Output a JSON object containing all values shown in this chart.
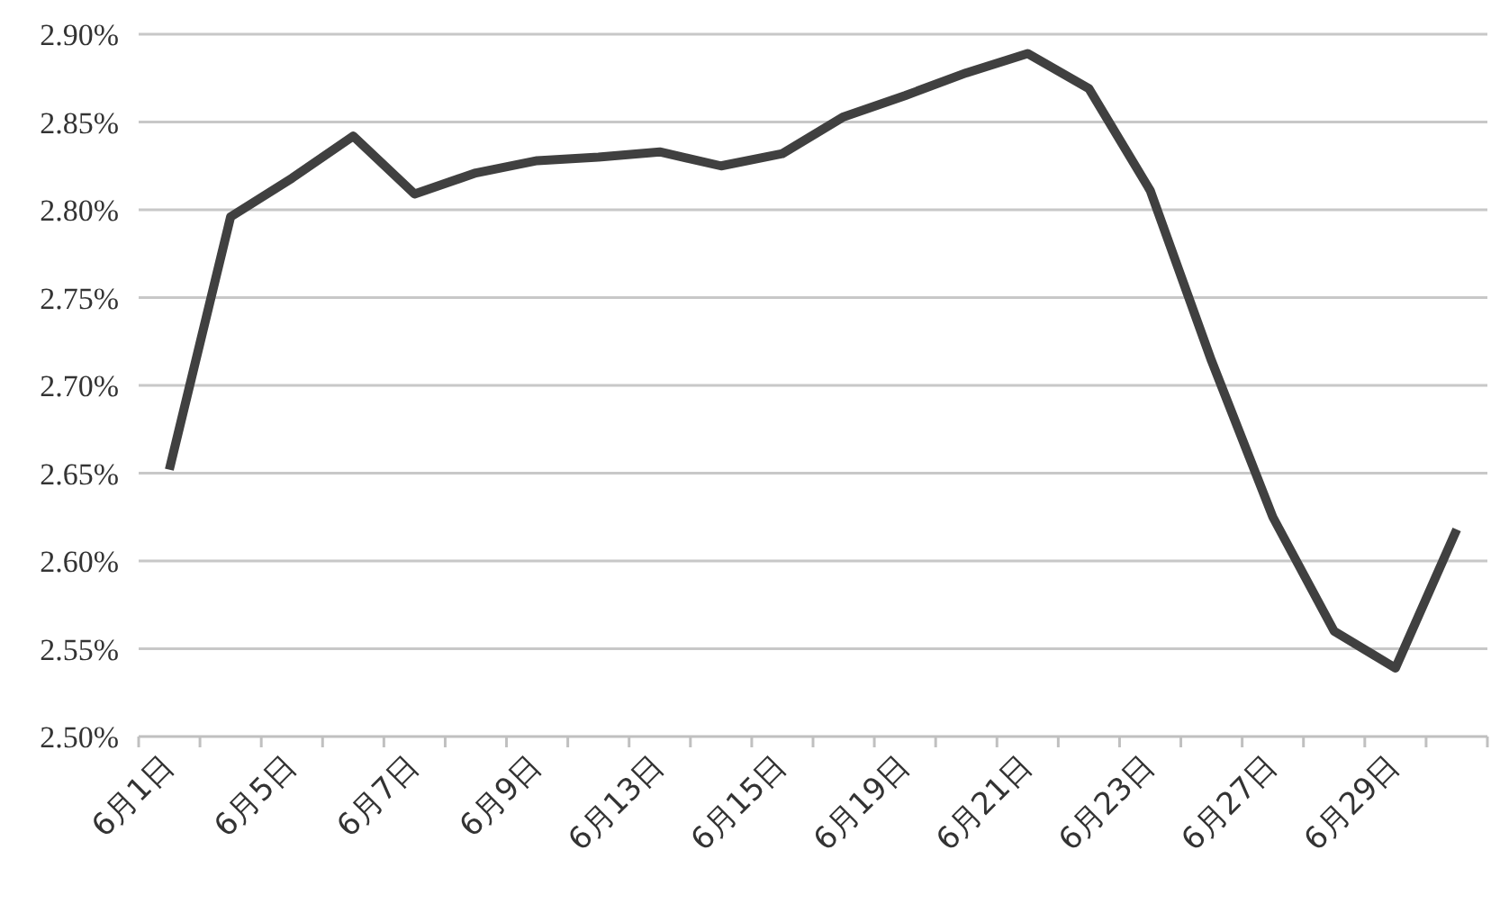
{
  "chart_data": {
    "type": "line",
    "categories": [
      "6月1日",
      null,
      "6月5日",
      null,
      "6月7日",
      null,
      "6月9日",
      null,
      "6月13日",
      null,
      "6月15日",
      null,
      "6月19日",
      null,
      "6月21日",
      null,
      "6月23日",
      null,
      "6月27日",
      null,
      "6月29日",
      null
    ],
    "series": [
      {
        "color": "#404040",
        "values": [
          2.652,
          2.796,
          2.818,
          2.842,
          2.809,
          2.821,
          2.828,
          2.83,
          2.833,
          2.825,
          2.832,
          2.853,
          2.865,
          2.878,
          2.889,
          2.869,
          2.811,
          2.714,
          2.625,
          2.56,
          2.539,
          2.618
        ]
      }
    ],
    "ylim": [
      2.5,
      2.9
    ],
    "yticks": [
      {
        "value": 2.5,
        "label": "2.50%"
      },
      {
        "value": 2.55,
        "label": "2.55%"
      },
      {
        "value": 2.6,
        "label": "2.60%"
      },
      {
        "value": 2.65,
        "label": "2.65%"
      },
      {
        "value": 2.7,
        "label": "2.70%"
      },
      {
        "value": 2.75,
        "label": "2.75%"
      },
      {
        "value": 2.8,
        "label": "2.80%"
      },
      {
        "value": 2.85,
        "label": "2.85%"
      },
      {
        "value": 2.9,
        "label": "2.90%"
      }
    ],
    "grid": "y",
    "marker": "none",
    "line_style": "solid"
  }
}
